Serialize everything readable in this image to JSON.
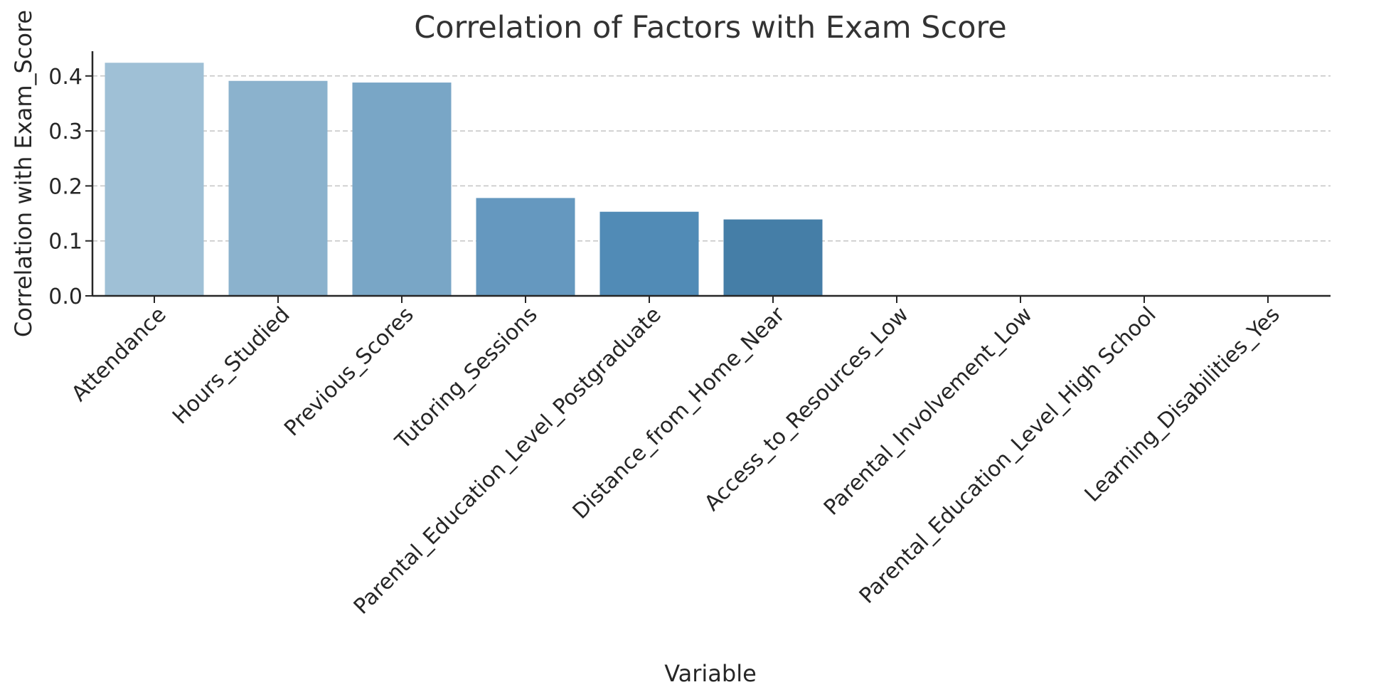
{
  "chart_data": {
    "type": "bar",
    "title": "Correlation of Factors with Exam Score",
    "xlabel": "Variable",
    "ylabel": "Correlation with Exam_Score",
    "categories": [
      "Attendance",
      "Hours_Studied",
      "Previous_Scores",
      "Tutoring_Sessions",
      "Parental_Education_Level_Postgraduate",
      "Distance_from_Home_Near",
      "Access_to_Resources_Low",
      "Parental_Involvement_Low",
      "Parental_Education_Level_High School",
      "Learning_Disabilities_Yes"
    ],
    "values": [
      0.424,
      0.391,
      0.388,
      0.178,
      0.153,
      0.139,
      0.0,
      0.0,
      0.0,
      0.0
    ],
    "ylim": [
      0,
      0.445
    ],
    "yticks": [
      0.0,
      0.1,
      0.2,
      0.3,
      0.4
    ],
    "ytick_labels": [
      "0.0",
      "0.1",
      "0.2",
      "0.3",
      "0.4"
    ],
    "grid": "y-dashed",
    "bar_colors": [
      "#9fc0d6",
      "#8bb2cd",
      "#79a6c6",
      "#6598bf",
      "#518bb6",
      "#457ea7",
      "#3d719b",
      "#35658c",
      "#2d5980",
      "#264e72"
    ]
  }
}
